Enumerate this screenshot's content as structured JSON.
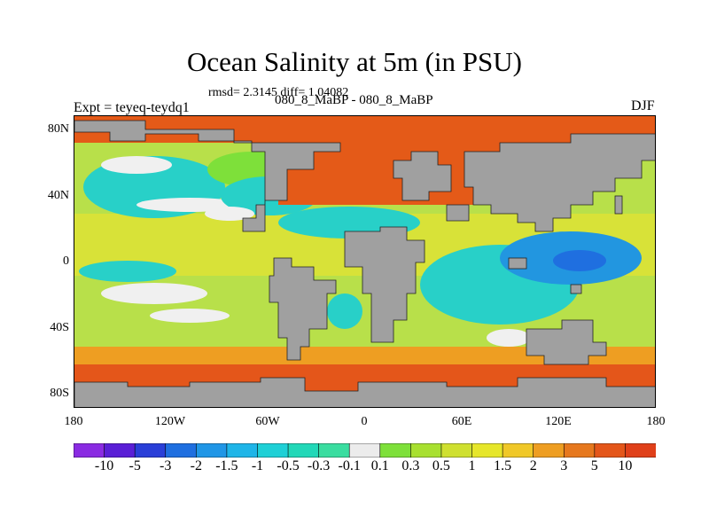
{
  "title": "Ocean Salinity at 5m (in PSU)",
  "rmsd_text": "rmsd= 2.3145 diff= 1.04082",
  "expt_text": "Expt = teyeq-teydq1",
  "diff_text": "080_8_MaBP - 080_8_MaBP",
  "season_text": "DJF",
  "lat_labels": [
    "80N",
    "40N",
    "0",
    "40S",
    "80S"
  ],
  "lon_labels": [
    "180",
    "120W",
    "60W",
    "0",
    "60E",
    "120E",
    "180"
  ],
  "colorbar": {
    "labels": [
      "-10",
      "-5",
      "-3",
      "-2",
      "-1.5",
      "-1",
      "-0.5",
      "-0.3",
      "-0.1",
      "0.1",
      "0.3",
      "0.5",
      "1",
      "1.5",
      "2",
      "3",
      "5",
      "10"
    ],
    "colors": [
      "#8a2be2",
      "#5a1fd6",
      "#2a3fd8",
      "#1f6fe0",
      "#2096e6",
      "#1fb5e8",
      "#1fd0d6",
      "#22d8b8",
      "#3adda0",
      "#ececec",
      "#7ee03a",
      "#a8e030",
      "#cfe030",
      "#e6e62a",
      "#f0c828",
      "#ee9e22",
      "#e6781e",
      "#e4561a",
      "#e0401a"
    ]
  },
  "colors": {
    "land": "#a0a0a0",
    "arctic": "#e45a18",
    "ocean_green": "#b8e04a",
    "ocean_cyan": "#28d0c8",
    "ocean_blue": "#2296e0",
    "white": "#f0f0f0"
  }
}
